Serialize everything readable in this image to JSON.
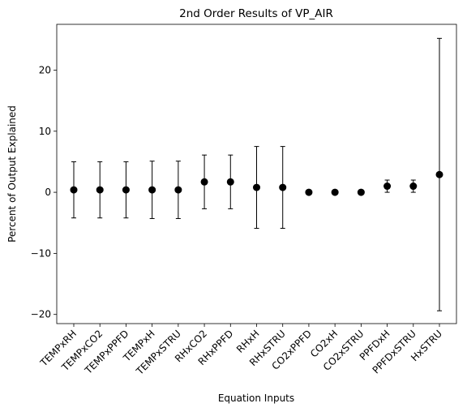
{
  "chart_data": {
    "type": "scatter",
    "title": "2nd Order Results of VP_AIR",
    "xlabel": "Equation Inputs",
    "ylabel": "Percent of Output Explained",
    "ylim": [
      -21.5,
      27.5
    ],
    "yticks": [
      -20,
      -10,
      0,
      10,
      20
    ],
    "grid": false,
    "legend": "none",
    "marker_color": "#000000",
    "categories": [
      "TEMPxRH",
      "TEMPxCO2",
      "TEMPxPPFD",
      "TEMPxH",
      "TEMPxSTRU",
      "RHxCO2",
      "RHxPPFD",
      "RHxH",
      "RHxSTRU",
      "CO2xPPFD",
      "CO2xH",
      "CO2xSTRU",
      "PPFDxH",
      "PPFDxSTRU",
      "HxSTRU"
    ],
    "values": [
      0.4,
      0.4,
      0.4,
      0.4,
      0.4,
      1.7,
      1.7,
      0.8,
      0.8,
      0.0,
      0.0,
      0.0,
      1.0,
      1.0,
      2.9
    ],
    "error": [
      4.6,
      4.6,
      4.6,
      4.7,
      4.7,
      4.4,
      4.4,
      6.7,
      6.7,
      0.0,
      0.0,
      0.0,
      1.0,
      1.0,
      22.3
    ]
  }
}
